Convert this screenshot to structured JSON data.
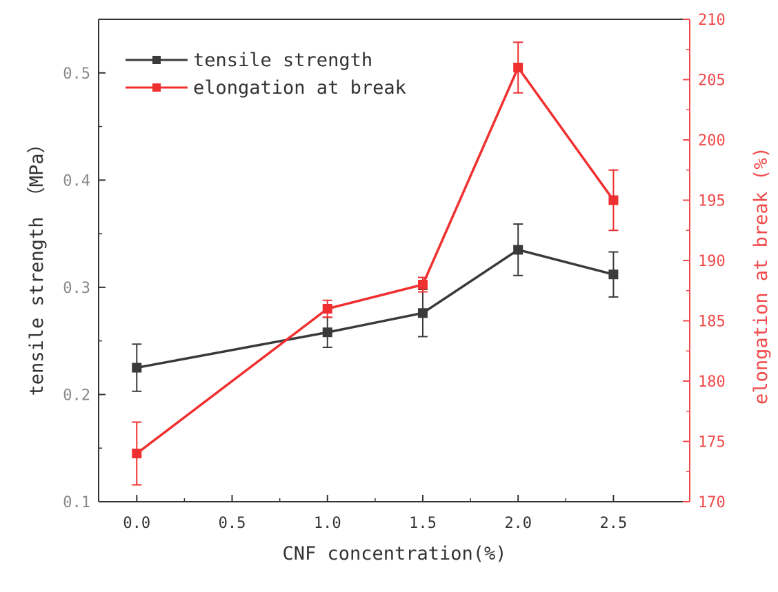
{
  "chart_data": {
    "type": "line",
    "title": "",
    "xlabel": "CNF concentration(%)",
    "ylabel_left": "tensile strength （MPa）",
    "ylabel_right": "elongation at break (%)",
    "xlim": [
      -0.2,
      2.9
    ],
    "ylim_left": [
      0.1,
      0.55
    ],
    "ylim_right": [
      170,
      210
    ],
    "x_ticks": [
      0.0,
      0.5,
      1.0,
      1.5,
      2.0,
      2.5
    ],
    "x_tick_labels": [
      "0.0",
      "0.5",
      "1.0",
      "1.5",
      "2.0",
      "2.5"
    ],
    "y_left_ticks": [
      0.1,
      0.2,
      0.3,
      0.4,
      0.5
    ],
    "y_left_tick_labels": [
      "0.1",
      "0.2",
      "0.3",
      "0.4",
      "0.5"
    ],
    "y_right_ticks": [
      170,
      175,
      180,
      185,
      190,
      195,
      200,
      205,
      210
    ],
    "y_right_tick_labels": [
      "170",
      "175",
      "180",
      "185",
      "190",
      "195",
      "200",
      "205",
      "210"
    ],
    "legend_position": "top-left",
    "grid": false,
    "series": [
      {
        "name": "tensile strength",
        "axis": "left",
        "color": "#3a3a3a",
        "x": [
          0.0,
          1.0,
          1.5,
          2.0,
          2.5
        ],
        "values": [
          0.225,
          0.258,
          0.276,
          0.335,
          0.312
        ],
        "errors": [
          0.022,
          0.014,
          0.022,
          0.024,
          0.021
        ]
      },
      {
        "name": "elongation at break",
        "axis": "right",
        "color": "#f03030",
        "x": [
          0.0,
          1.0,
          1.5,
          2.0,
          2.5
        ],
        "values": [
          174.0,
          186.0,
          188.0,
          206.0,
          195.0
        ],
        "errors": [
          2.6,
          0.7,
          0.6,
          2.1,
          2.5
        ]
      }
    ]
  }
}
